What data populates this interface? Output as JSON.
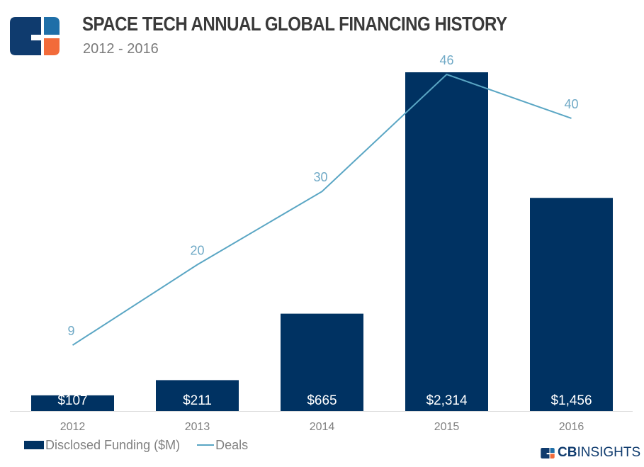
{
  "header": {
    "title": "SPACE TECH ANNUAL GLOBAL FINANCING HISTORY",
    "subtitle": "2012 - 2016",
    "logo": "cb-insights-logo-icon"
  },
  "colors": {
    "bar": "#003262",
    "line": "#5aa6c4",
    "line_label": "#6fa9c6",
    "bar_label": "#ffffff",
    "axis_label": "#808080",
    "baseline": "#dcdcdc",
    "logo_dark": "#0f3b6e",
    "logo_blue": "#1f6fa8",
    "logo_orange": "#f26b3a"
  },
  "chart_data": {
    "type": "bar",
    "title": "SPACE TECH ANNUAL GLOBAL FINANCING HISTORY",
    "subtitle": "2012 - 2016",
    "categories": [
      "2012",
      "2013",
      "2014",
      "2015",
      "2016"
    ],
    "series": [
      {
        "name": "Disclosed Funding ($M)",
        "type": "bar",
        "values": [
          107,
          211,
          665,
          2314,
          1456
        ],
        "labels": [
          "$107",
          "$211",
          "$665",
          "$2,314",
          "$1,456"
        ]
      },
      {
        "name": "Deals",
        "type": "line",
        "values": [
          9,
          20,
          30,
          46,
          40
        ],
        "labels": [
          "9",
          "20",
          "30",
          "46",
          "40"
        ]
      }
    ],
    "xlabel": "",
    "ylabel": "",
    "ylim_bar": [
      0,
      2314
    ],
    "ylim_line": [
      0,
      46
    ],
    "grid": false,
    "legend_position": "bottom-left"
  },
  "legend": {
    "bar_label": "Disclosed Funding ($M)",
    "line_label": "Deals"
  },
  "footer": {
    "brand_bold": "CB",
    "brand_regular": "INSIGHTS"
  }
}
